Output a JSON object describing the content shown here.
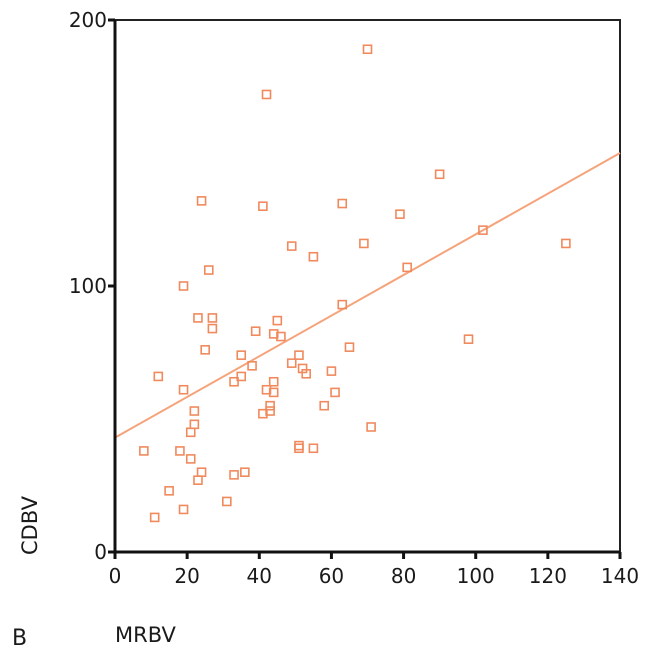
{
  "panel_label": "B",
  "colors": {
    "marker": "#f08a5d",
    "fit_line": "#f5a37a",
    "axes": "#111111",
    "frame": "#222222"
  },
  "chart_data": {
    "type": "scatter",
    "xlabel": "MRBV",
    "ylabel": "CDBV",
    "xlim": [
      0,
      140
    ],
    "ylim": [
      0,
      200
    ],
    "xticks": [
      0,
      20,
      40,
      60,
      80,
      100,
      120,
      140
    ],
    "yticks": [
      0,
      100,
      200
    ],
    "x_tick_labels": [
      "0",
      "20",
      "40",
      "60",
      "80",
      "100",
      "120",
      "140"
    ],
    "y_tick_labels": [
      "0",
      "100",
      "200"
    ],
    "grid": false,
    "marker": "open-square",
    "fit_line": {
      "x": [
        0,
        140
      ],
      "y": [
        43,
        150
      ]
    },
    "points": [
      {
        "x": 70,
        "y": 189
      },
      {
        "x": 42,
        "y": 172
      },
      {
        "x": 90,
        "y": 142
      },
      {
        "x": 24,
        "y": 132
      },
      {
        "x": 41,
        "y": 130
      },
      {
        "x": 63,
        "y": 131
      },
      {
        "x": 79,
        "y": 127
      },
      {
        "x": 102,
        "y": 121
      },
      {
        "x": 125,
        "y": 116
      },
      {
        "x": 49,
        "y": 115
      },
      {
        "x": 69,
        "y": 116
      },
      {
        "x": 55,
        "y": 111
      },
      {
        "x": 26,
        "y": 106
      },
      {
        "x": 81,
        "y": 107
      },
      {
        "x": 19,
        "y": 100
      },
      {
        "x": 63,
        "y": 93
      },
      {
        "x": 23,
        "y": 88
      },
      {
        "x": 27,
        "y": 88
      },
      {
        "x": 45,
        "y": 87
      },
      {
        "x": 27,
        "y": 84
      },
      {
        "x": 39,
        "y": 83
      },
      {
        "x": 44,
        "y": 82
      },
      {
        "x": 46,
        "y": 81
      },
      {
        "x": 98,
        "y": 80
      },
      {
        "x": 65,
        "y": 77
      },
      {
        "x": 25,
        "y": 76
      },
      {
        "x": 35,
        "y": 74
      },
      {
        "x": 51,
        "y": 74
      },
      {
        "x": 49,
        "y": 71
      },
      {
        "x": 38,
        "y": 70
      },
      {
        "x": 52,
        "y": 69
      },
      {
        "x": 60,
        "y": 68
      },
      {
        "x": 53,
        "y": 67
      },
      {
        "x": 35,
        "y": 66
      },
      {
        "x": 12,
        "y": 66
      },
      {
        "x": 33,
        "y": 64
      },
      {
        "x": 44,
        "y": 64
      },
      {
        "x": 19,
        "y": 61
      },
      {
        "x": 42,
        "y": 61
      },
      {
        "x": 44,
        "y": 60
      },
      {
        "x": 61,
        "y": 60
      },
      {
        "x": 58,
        "y": 55
      },
      {
        "x": 43,
        "y": 55
      },
      {
        "x": 22,
        "y": 53
      },
      {
        "x": 41,
        "y": 52
      },
      {
        "x": 43,
        "y": 53
      },
      {
        "x": 22,
        "y": 48
      },
      {
        "x": 71,
        "y": 47
      },
      {
        "x": 21,
        "y": 45
      },
      {
        "x": 51,
        "y": 40
      },
      {
        "x": 51,
        "y": 39
      },
      {
        "x": 55,
        "y": 39
      },
      {
        "x": 8,
        "y": 38
      },
      {
        "x": 18,
        "y": 38
      },
      {
        "x": 21,
        "y": 35
      },
      {
        "x": 24,
        "y": 30
      },
      {
        "x": 33,
        "y": 29
      },
      {
        "x": 36,
        "y": 30
      },
      {
        "x": 23,
        "y": 27
      },
      {
        "x": 15,
        "y": 23
      },
      {
        "x": 31,
        "y": 19
      },
      {
        "x": 19,
        "y": 16
      },
      {
        "x": 11,
        "y": 13
      }
    ]
  }
}
